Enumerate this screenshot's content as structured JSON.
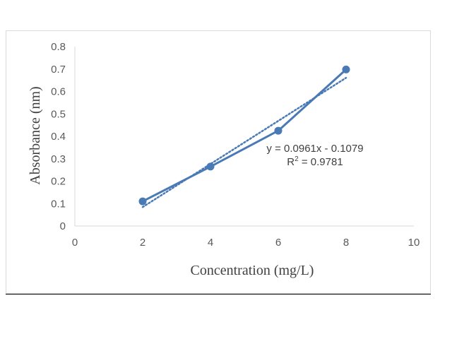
{
  "chart_data": {
    "type": "scatter",
    "title": "",
    "xlabel": "Concentration (mg/L)",
    "ylabel": "Absorbance (nm)",
    "xlim": [
      0,
      10
    ],
    "ylim": [
      0,
      0.8
    ],
    "x_ticks": [
      "0",
      "2",
      "4",
      "6",
      "8",
      "10"
    ],
    "y_ticks": [
      "0",
      "0.1",
      "0.2",
      "0.3",
      "0.4",
      "0.5",
      "0.6",
      "0.7",
      "0.8"
    ],
    "grid": false,
    "legend": "none",
    "series": [
      {
        "x": [
          2,
          4,
          6,
          8
        ],
        "y": [
          0.11,
          0.265,
          0.425,
          0.698
        ],
        "style": "line with markers",
        "color": "#4a7ab5"
      }
    ],
    "trendline": {
      "type": "linear",
      "slope": 0.0961,
      "intercept": -0.1079,
      "x_range": [
        2,
        8
      ],
      "style": "dotted",
      "color": "#4a7ab5",
      "equation_text": "y = 0.0961x - 0.1079",
      "r2_prefix": "R",
      "r2_superscript": "2",
      "r2_value": " = 0.9781"
    }
  }
}
